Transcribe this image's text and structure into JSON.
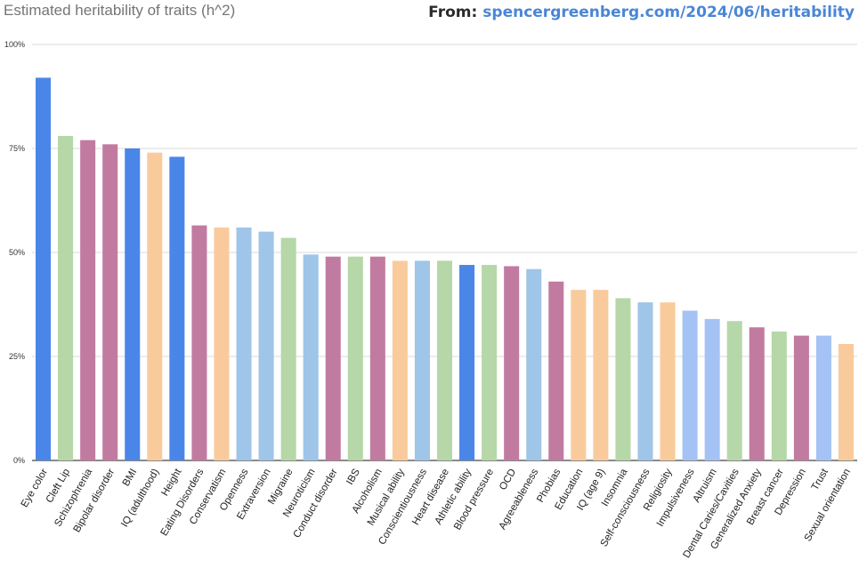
{
  "header": {
    "source_prefix": "From:",
    "source_link": "spencergreenberg.com/2024/06/heritability"
  },
  "colors": {
    "blue": "#4a86e8",
    "green": "#b6d7a8",
    "magenta": "#c27ba0",
    "orange": "#f9cb9c",
    "lightblue": "#9fc5e8",
    "lavender": "#a4c2f4"
  },
  "chart_data": {
    "type": "bar",
    "title": "Estimated heritability of traits (h^2)",
    "xlabel": "",
    "ylabel": "",
    "ylim": [
      0,
      100
    ],
    "yticks": [
      "0%",
      "25%",
      "50%",
      "75%",
      "100%"
    ],
    "grid": true,
    "legend": "none",
    "categories": [
      "Eye color",
      "Cleft Lip",
      "Schizophrenia",
      "Bipolar disorder",
      "BMI",
      "IQ (adulthood)",
      "Height",
      "Eating Disorders",
      "Conservatism",
      "Openness",
      "Extraversion",
      "Migraine",
      "Neuroticism",
      "Conduct disorder",
      "IBS",
      "Alcoholism",
      "Musical ability",
      "Conscientiousness",
      "Heart disease",
      "Athletic ability",
      "Blood pressure",
      "OCD",
      "Agreeableness",
      "Phobias",
      "Education",
      "IQ (age 9)",
      "Insomnia",
      "Self-consciousness",
      "Religiosity",
      "Impulsiveness",
      "Altruism",
      "Dental Caries/Cavities",
      "Generalized Anxiety",
      "Breast cancer",
      "Depression",
      "Trust",
      "Sexual orientation"
    ],
    "values": [
      92,
      78,
      77,
      76,
      75,
      74,
      73,
      56.5,
      56,
      56,
      55,
      53.5,
      49.5,
      49,
      49,
      49,
      48,
      48,
      48,
      47,
      47,
      46.7,
      46,
      43,
      41,
      41,
      39,
      38,
      38,
      36,
      34,
      33.5,
      32,
      31,
      30,
      30,
      28
    ],
    "bar_colors": [
      "blue",
      "green",
      "magenta",
      "magenta",
      "blue",
      "orange",
      "blue",
      "magenta",
      "orange",
      "lightblue",
      "lightblue",
      "green",
      "lightblue",
      "magenta",
      "green",
      "magenta",
      "orange",
      "lightblue",
      "green",
      "blue",
      "green",
      "magenta",
      "lightblue",
      "magenta",
      "orange",
      "orange",
      "green",
      "lightblue",
      "orange",
      "lavender",
      "lavender",
      "green",
      "magenta",
      "green",
      "magenta",
      "lavender",
      "orange"
    ]
  }
}
